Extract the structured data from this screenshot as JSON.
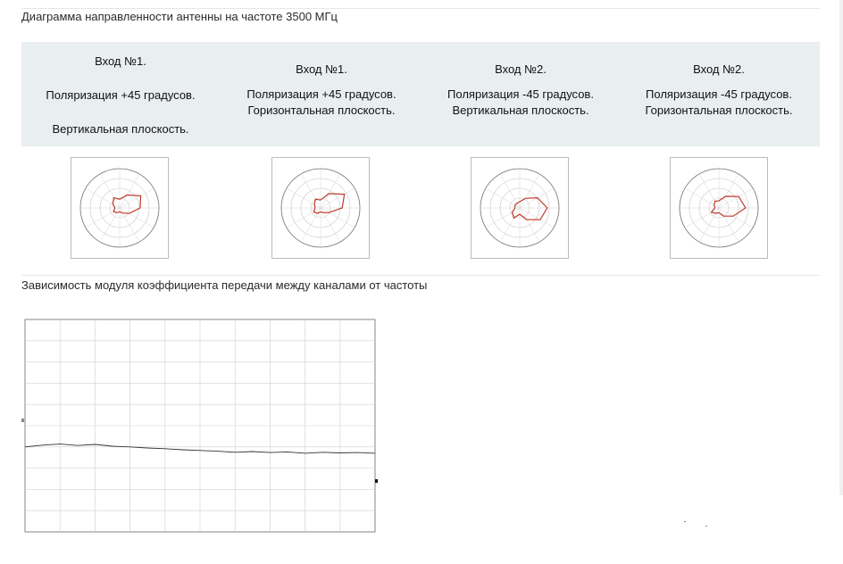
{
  "section1_title": "Диаграмма направленности антенны на частоте 3500 МГц",
  "section2_title": "Зависимость модуля коэффициента передачи между каналами от частоты",
  "columns": [
    {
      "input": "Вход №1.",
      "polarization": "Поляризация +45 градусов.",
      "plane": "Вертикальная плоскость."
    },
    {
      "input": "Вход №1.",
      "polarization": "Поляризация +45 градусов.",
      "plane": "Горизонтальная  плоскость."
    },
    {
      "input": "Вход №2.",
      "polarization": "Поляризация -45 градусов.",
      "plane": "Вертикальная плоскость."
    },
    {
      "input": "Вход №2.",
      "polarization": "Поляризация -45 градусов.",
      "plane": "Горизонтальная  плоскость."
    }
  ],
  "colors": {
    "band": "#e9eef1",
    "pattern": "#c0392b",
    "trace": "#333333"
  },
  "polar_charts": [
    {
      "type": "polar",
      "angles": [
        0,
        30,
        60,
        90,
        120,
        150,
        180,
        210,
        240,
        270,
        300,
        330
      ],
      "values": [
        0.22,
        0.38,
        0.62,
        0.52,
        0.28,
        0.15,
        0.1,
        0.14,
        0.18,
        0.12,
        0.2,
        0.3
      ]
    },
    {
      "type": "polar",
      "angles": [
        0,
        30,
        60,
        90,
        120,
        150,
        180,
        210,
        240,
        270,
        300,
        330
      ],
      "values": [
        0.2,
        0.42,
        0.7,
        0.55,
        0.24,
        0.14,
        0.1,
        0.16,
        0.2,
        0.14,
        0.18,
        0.26
      ]
    },
    {
      "type": "polar",
      "angles": [
        0,
        30,
        60,
        90,
        120,
        150,
        180,
        210,
        240,
        270,
        300,
        330
      ],
      "values": [
        0.16,
        0.28,
        0.52,
        0.7,
        0.6,
        0.34,
        0.16,
        0.3,
        0.22,
        0.12,
        0.14,
        0.14
      ]
    },
    {
      "type": "polar",
      "angles": [
        0,
        30,
        60,
        90,
        120,
        150,
        180,
        210,
        240,
        270,
        300,
        330
      ],
      "values": [
        0.18,
        0.34,
        0.58,
        0.68,
        0.42,
        0.24,
        0.12,
        0.16,
        0.22,
        0.1,
        0.14,
        0.2
      ]
    }
  ],
  "chart_data": {
    "type": "line",
    "x": [
      0,
      1,
      2,
      3,
      4,
      5,
      6,
      7,
      8,
      9,
      10,
      11,
      12,
      13,
      14,
      15,
      16,
      17,
      18,
      19,
      20
    ],
    "values": [
      -36,
      -35.5,
      -35.2,
      -35.6,
      -35.3,
      -35.8,
      -36,
      -36.3,
      -36.5,
      -36.8,
      -37,
      -37.2,
      -37.5,
      -37.3,
      -37.6,
      -37.4,
      -37.8,
      -37.5,
      -37.7,
      -37.6,
      -37.8
    ],
    "ylim": [
      -60,
      0
    ]
  }
}
